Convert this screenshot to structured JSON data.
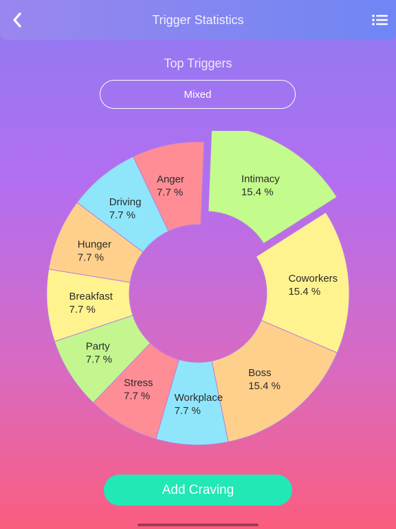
{
  "header": {
    "title": "Trigger Statistics",
    "back_icon": "chevron-left-icon",
    "menu_icon": "list-icon"
  },
  "section_title": "Top Triggers",
  "filter": {
    "selected": "Mixed"
  },
  "chart_data": {
    "type": "pie",
    "donut": true,
    "slices": [
      {
        "label": "Intimacy",
        "percent_label": "15.4 %",
        "value": 15.4,
        "color": "#c3fb8c",
        "exploded": true
      },
      {
        "label": "Coworkers",
        "percent_label": "15.4 %",
        "value": 15.4,
        "color": "#fff38f"
      },
      {
        "label": "Boss",
        "percent_label": "15.4 %",
        "value": 15.4,
        "color": "#ffd08c"
      },
      {
        "label": "Workplace",
        "percent_label": "7.7 %",
        "value": 7.7,
        "color": "#8fe6fb"
      },
      {
        "label": "Stress",
        "percent_label": "7.7 %",
        "value": 7.7,
        "color": "#ff8d96"
      },
      {
        "label": "Party",
        "percent_label": "7.7 %",
        "value": 7.7,
        "color": "#c4f68f"
      },
      {
        "label": "Breakfast",
        "percent_label": "7.7 %",
        "value": 7.7,
        "color": "#fff38f"
      },
      {
        "label": "Hunger",
        "percent_label": "7.7 %",
        "value": 7.7,
        "color": "#ffd08c"
      },
      {
        "label": "Driving",
        "percent_label": "7.7 %",
        "value": 7.7,
        "color": "#8fe6fb"
      },
      {
        "label": "Anger",
        "percent_label": "7.7 %",
        "value": 7.7,
        "color": "#ff8d96"
      }
    ]
  },
  "add_button": {
    "label": "Add Craving"
  }
}
